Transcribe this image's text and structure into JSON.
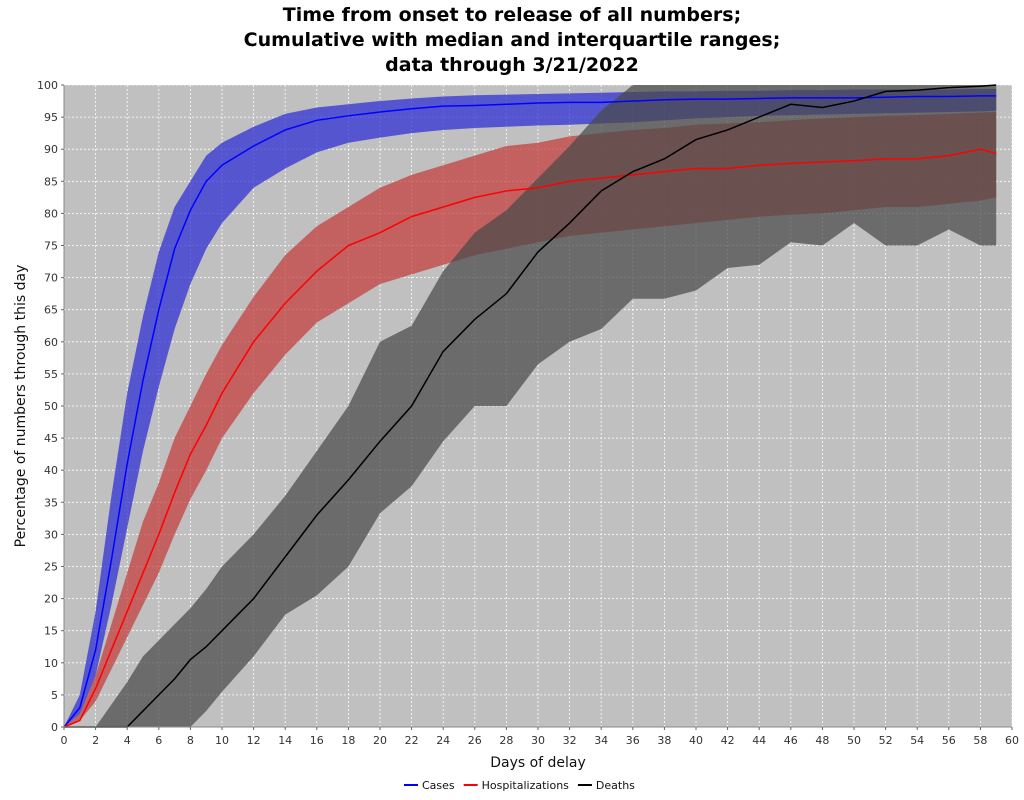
{
  "chart_data": {
    "type": "area",
    "title_lines": [
      "Time from onset to release of all numbers;",
      "Cumulative with median and interquartile ranges;",
      "data through 3/21/2022"
    ],
    "xlabel": "Days of delay",
    "ylabel": "Percentage of numbers through this day",
    "xlim": [
      0,
      60
    ],
    "ylim": [
      0,
      100
    ],
    "x_ticks": [
      0,
      2,
      4,
      6,
      8,
      10,
      12,
      14,
      16,
      18,
      20,
      22,
      24,
      26,
      28,
      30,
      32,
      34,
      36,
      38,
      40,
      42,
      44,
      46,
      48,
      50,
      52,
      54,
      56,
      58,
      60
    ],
    "y_ticks": [
      0,
      5,
      10,
      15,
      20,
      25,
      30,
      35,
      40,
      45,
      50,
      55,
      60,
      65,
      70,
      75,
      80,
      85,
      90,
      95,
      100
    ],
    "grid": true,
    "legend_position": "bottom-center",
    "plot_background": "#c0c0c0",
    "x": [
      0,
      1,
      2,
      3,
      4,
      5,
      6,
      7,
      8,
      9,
      10,
      12,
      14,
      16,
      18,
      20,
      22,
      24,
      26,
      28,
      30,
      32,
      34,
      36,
      38,
      40,
      42,
      44,
      46,
      48,
      50,
      52,
      54,
      56,
      58,
      59
    ],
    "series": [
      {
        "name": "Cases",
        "color": "#0000ff",
        "band_color": "#2b2bd6",
        "median": [
          0,
          3,
          12,
          26,
          41,
          54,
          65,
          74.5,
          80.5,
          85,
          87.5,
          90.5,
          93,
          94.5,
          95.2,
          95.8,
          96.3,
          96.7,
          96.8,
          97,
          97.2,
          97.3,
          97.3,
          97.5,
          97.7,
          97.8,
          97.8,
          97.9,
          98,
          98,
          98,
          98.1,
          98.2,
          98.2,
          98.3,
          98.3
        ],
        "q1": [
          0,
          2,
          8,
          19,
          31,
          43,
          53,
          62,
          69,
          74.5,
          78.5,
          84,
          87,
          89.5,
          91,
          91.8,
          92.5,
          93,
          93.3,
          93.5,
          93.7,
          93.8,
          94,
          94.2,
          94.5,
          94.8,
          95,
          95.2,
          95.3,
          95.4,
          95.5,
          95.6,
          95.7,
          95.8,
          95.9,
          96
        ],
        "q3": [
          0,
          5,
          18,
          36,
          52,
          64,
          74,
          81,
          85,
          89,
          91,
          93.5,
          95.5,
          96.5,
          97,
          97.5,
          97.9,
          98.2,
          98.4,
          98.5,
          98.6,
          98.7,
          98.8,
          98.9,
          99,
          99,
          99.1,
          99.1,
          99.2,
          99.2,
          99.3,
          99.3,
          99.3,
          99.3,
          99.4,
          99.4
        ]
      },
      {
        "name": "Hospitalizations",
        "color": "#ff0000",
        "band_color": "#c43a3a",
        "median": [
          0,
          1,
          6,
          12,
          18,
          24,
          30,
          36.5,
          42.5,
          47,
          52,
          60,
          66,
          71,
          75,
          77,
          79.5,
          81,
          82.5,
          83.5,
          84,
          85,
          85.5,
          86,
          86.5,
          87,
          87,
          87.5,
          87.8,
          88,
          88.2,
          88.5,
          88.5,
          89,
          90,
          89.3
        ],
        "q1": [
          0,
          1,
          4,
          9,
          14,
          19,
          24,
          30,
          35.5,
          40,
          45,
          52,
          58,
          63,
          66,
          69,
          70.5,
          72,
          73.5,
          74.5,
          75.5,
          76.5,
          77,
          77.5,
          78,
          78.5,
          79,
          79.5,
          79.8,
          80,
          80.5,
          81,
          81,
          81.5,
          82,
          82.5
        ],
        "q3": [
          0,
          2,
          8,
          16,
          24,
          32,
          38,
          45,
          50,
          55,
          59.5,
          67,
          73.5,
          78,
          81,
          84,
          86,
          87.5,
          89,
          90.5,
          91,
          92,
          92.5,
          93,
          93.3,
          93.8,
          94,
          94.2,
          94.5,
          94.8,
          95,
          95.2,
          95.3,
          95.5,
          95.7,
          95.8
        ]
      },
      {
        "name": "Deaths",
        "color": "#000000",
        "band_color": "#4a4a4a",
        "median": [
          0,
          0,
          0,
          0,
          0,
          2.5,
          5,
          7.5,
          10.5,
          12.5,
          15,
          20,
          26.5,
          33,
          38.5,
          44.5,
          50,
          58.5,
          63.5,
          67.5,
          74,
          78.5,
          83.5,
          86.5,
          88.5,
          91.5,
          93,
          95,
          97,
          96.5,
          97.5,
          99,
          99.2,
          99.6,
          99.8,
          100
        ],
        "q1": [
          0,
          0,
          0,
          0,
          0,
          0,
          0,
          0,
          0,
          2.5,
          5.5,
          11,
          17.5,
          20.5,
          25,
          33.3,
          37.5,
          44.5,
          50,
          50,
          56.5,
          60,
          62,
          66.7,
          66.7,
          68,
          71.5,
          72,
          75.5,
          75,
          78.5,
          75,
          75,
          77.5,
          75,
          75
        ],
        "q3": [
          0,
          0,
          0,
          3.5,
          7,
          11,
          13.5,
          16,
          18.5,
          21.5,
          25,
          30,
          36,
          43,
          50,
          60,
          62.5,
          71,
          77,
          80.5,
          85.5,
          90.5,
          96,
          100,
          100,
          100,
          100,
          100,
          100,
          100,
          100,
          100,
          100,
          100,
          100,
          100
        ]
      }
    ]
  }
}
